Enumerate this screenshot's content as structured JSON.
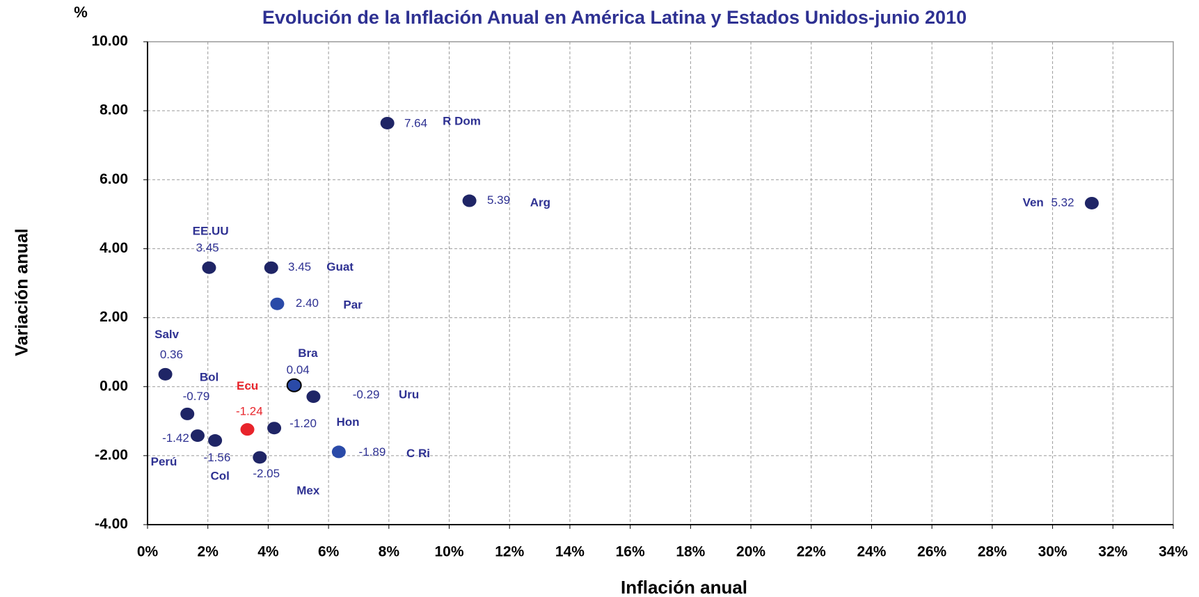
{
  "chart_data": {
    "type": "scatter",
    "title": "Evolución de la Inflación Anual en América Latina y Estados Unidos-junio 2010",
    "x_label": "Inflación anual",
    "y_label": "Variación anual",
    "y_unit": "%",
    "xlim": [
      0,
      34
    ],
    "ylim": [
      -4,
      10
    ],
    "xticks": [
      {
        "value": 0,
        "label": "0%"
      },
      {
        "value": 2,
        "label": "2%"
      },
      {
        "value": 4,
        "label": "4%"
      },
      {
        "value": 6,
        "label": "6%"
      },
      {
        "value": 8,
        "label": "8%"
      },
      {
        "value": 10,
        "label": "10%"
      },
      {
        "value": 12,
        "label": "12%"
      },
      {
        "value": 14,
        "label": "14%"
      },
      {
        "value": 16,
        "label": "16%"
      },
      {
        "value": 18,
        "label": "18%"
      },
      {
        "value": 20,
        "label": "20%"
      },
      {
        "value": 22,
        "label": "22%"
      },
      {
        "value": 24,
        "label": "24%"
      },
      {
        "value": 26,
        "label": "26%"
      },
      {
        "value": 28,
        "label": "28%"
      },
      {
        "value": 30,
        "label": "30%"
      },
      {
        "value": 32,
        "label": "32%"
      },
      {
        "value": 34,
        "label": "34%"
      }
    ],
    "yticks": [
      {
        "value": 10,
        "label": "10.00"
      },
      {
        "value": 8,
        "label": "8.00"
      },
      {
        "value": 6,
        "label": "6.00"
      },
      {
        "value": 4,
        "label": "4.00"
      },
      {
        "value": 2,
        "label": "2.00"
      },
      {
        "value": 0,
        "label": "0.00"
      },
      {
        "value": -2,
        "label": "-2.00"
      },
      {
        "value": -4,
        "label": "-4.00"
      }
    ],
    "grid": true,
    "points": [
      {
        "name": "EE.UU",
        "x": 2.04,
        "y": 3.45,
        "value_label": "3.45",
        "color": "#1f2566"
      },
      {
        "name": "Guat",
        "x": 4.1,
        "y": 3.45,
        "value_label": "3.45",
        "color": "#1f2566"
      },
      {
        "name": "Par",
        "x": 4.3,
        "y": 2.4,
        "value_label": "2.40",
        "color": "#2a4aa8"
      },
      {
        "name": "R Dom",
        "x": 7.95,
        "y": 7.64,
        "value_label": "7.64",
        "color": "#1f2566"
      },
      {
        "name": "Arg",
        "x": 10.67,
        "y": 5.39,
        "value_label": "5.39",
        "color": "#1f2566"
      },
      {
        "name": "Ven",
        "x": 31.3,
        "y": 5.32,
        "value_label": "5.32",
        "color": "#1f2566"
      },
      {
        "name": "Salv",
        "x": 0.59,
        "y": 0.36,
        "value_label": "0.36",
        "color": "#1f2566"
      },
      {
        "name": "Bol",
        "x": 1.32,
        "y": -0.79,
        "value_label": "-0.79",
        "color": "#1f2566"
      },
      {
        "name": "Perú",
        "x": 1.66,
        "y": -1.42,
        "value_label": "-1.42",
        "color": "#1f2566"
      },
      {
        "name": "Col",
        "x": 2.24,
        "y": -1.56,
        "value_label": "-1.56",
        "color": "#1f2566"
      },
      {
        "name": "Ecu",
        "x": 3.31,
        "y": -1.24,
        "value_label": "-1.24",
        "color": "#e8242b"
      },
      {
        "name": "Mex",
        "x": 3.72,
        "y": -2.05,
        "value_label": "-2.05",
        "color": "#1f2566"
      },
      {
        "name": "Hon",
        "x": 4.2,
        "y": -1.2,
        "value_label": "-1.20",
        "color": "#1f2566"
      },
      {
        "name": "Bra",
        "x": 4.86,
        "y": 0.04,
        "value_label": "0.04",
        "color": "#2a4aa8"
      },
      {
        "name": "Uru",
        "x": 5.5,
        "y": -0.29,
        "value_label": "-0.29",
        "color": "#1f2566"
      },
      {
        "name": "C Ri",
        "x": 6.34,
        "y": -1.89,
        "value_label": "-1.89",
        "color": "#2a4aa8"
      }
    ]
  }
}
